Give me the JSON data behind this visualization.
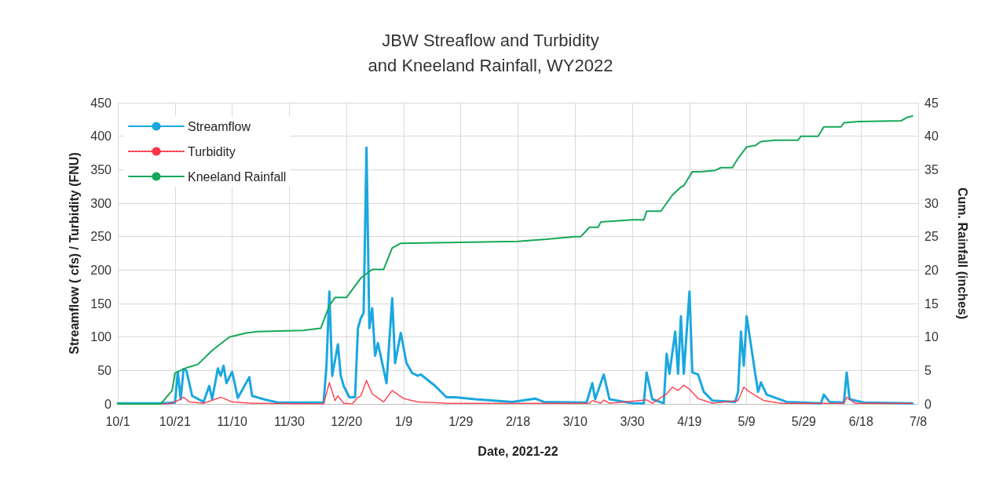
{
  "chart_data": {
    "type": "line",
    "title": "JBW Streaflow and Turbidity\nand Kneeland Rainfall, WY2022",
    "xlabel": "Date, 2021-22",
    "ylabel": "Streamflow ( cfs) / Turbidity (FNU)",
    "y2label": "Cum. Rainfall (inches)",
    "xlim": [
      "2021-10-01",
      "2022-07-08"
    ],
    "xticks": [
      {
        "value": "2021-10-01",
        "label": "10/1"
      },
      {
        "value": "2021-10-21",
        "label": "10/21"
      },
      {
        "value": "2021-11-10",
        "label": "11/10"
      },
      {
        "value": "2021-11-30",
        "label": "11/30"
      },
      {
        "value": "2021-12-20",
        "label": "12/20"
      },
      {
        "value": "2022-01-09",
        "label": "1/9"
      },
      {
        "value": "2022-01-29",
        "label": "1/29"
      },
      {
        "value": "2022-02-18",
        "label": "2/18"
      },
      {
        "value": "2022-03-10",
        "label": "3/10"
      },
      {
        "value": "2022-03-30",
        "label": "3/30"
      },
      {
        "value": "2022-04-19",
        "label": "4/19"
      },
      {
        "value": "2022-05-09",
        "label": "5/9"
      },
      {
        "value": "2022-05-29",
        "label": "5/29"
      },
      {
        "value": "2022-06-18",
        "label": "6/18"
      },
      {
        "value": "2022-07-08",
        "label": "7/8"
      }
    ],
    "ylim": [
      0,
      450
    ],
    "yticks": [
      0,
      50,
      100,
      150,
      200,
      250,
      300,
      350,
      400,
      450
    ],
    "y2lim": [
      0,
      45
    ],
    "y2ticks": [
      0,
      5,
      10,
      15,
      20,
      25,
      30,
      35,
      40,
      45
    ],
    "grid": true,
    "legend": "top left",
    "marker": "none",
    "series": [
      {
        "name": "Streamflow",
        "color": "#1aa7e0",
        "line_style": "solid",
        "x": [
          "2021-10-01",
          "2021-10-16",
          "2021-10-21",
          "2021-10-22",
          "2021-10-23",
          "2021-10-24",
          "2021-10-25",
          "2021-10-27",
          "2021-10-31",
          "2021-11-02",
          "2021-11-03",
          "2021-11-05",
          "2021-11-06",
          "2021-11-07",
          "2021-11-08",
          "2021-11-10",
          "2021-11-12",
          "2021-11-16",
          "2021-11-17",
          "2021-11-21",
          "2021-11-26",
          "2021-12-12",
          "2021-12-13",
          "2021-12-14",
          "2021-12-15",
          "2021-12-17",
          "2021-12-18",
          "2021-12-19",
          "2021-12-21",
          "2021-12-23",
          "2021-12-24",
          "2021-12-25",
          "2021-12-26",
          "2021-12-27",
          "2021-12-28",
          "2021-12-29",
          "2021-12-30",
          "2021-12-31",
          "2022-01-03",
          "2022-01-05",
          "2022-01-06",
          "2022-01-08",
          "2022-01-10",
          "2022-01-12",
          "2022-01-14",
          "2022-01-15",
          "2022-01-20",
          "2022-01-24",
          "2022-01-27",
          "2022-02-03",
          "2022-02-16",
          "2022-02-24",
          "2022-02-27",
          "2022-03-14",
          "2022-03-16",
          "2022-03-17",
          "2022-03-20",
          "2022-03-22",
          "2022-03-30",
          "2022-04-03",
          "2022-04-04",
          "2022-04-06",
          "2022-04-10",
          "2022-04-11",
          "2022-04-12",
          "2022-04-14",
          "2022-04-15",
          "2022-04-16",
          "2022-04-17",
          "2022-04-19",
          "2022-04-20",
          "2022-04-22",
          "2022-04-24",
          "2022-04-27",
          "2022-05-05",
          "2022-05-06",
          "2022-05-07",
          "2022-05-08",
          "2022-05-09",
          "2022-05-12",
          "2022-05-13",
          "2022-05-14",
          "2022-05-16",
          "2022-05-23",
          "2022-06-04",
          "2022-06-05",
          "2022-06-07",
          "2022-06-12",
          "2022-06-13",
          "2022-06-14",
          "2022-06-19",
          "2022-07-06"
        ],
        "values": [
          1,
          1,
          2,
          48,
          7,
          52,
          50,
          12,
          3,
          27,
          7,
          53,
          42,
          57,
          31,
          48,
          9,
          40,
          12,
          7,
          2,
          2,
          57,
          168,
          42,
          89,
          42,
          27,
          10,
          10,
          113,
          128,
          136,
          383,
          113,
          143,
          72,
          91,
          31,
          158,
          61,
          106,
          61,
          46,
          42,
          44,
          27,
          10,
          10,
          7,
          3,
          8,
          3,
          2,
          31,
          7,
          44,
          7,
          1,
          1,
          47,
          7,
          1,
          75,
          45,
          108,
          45,
          131,
          45,
          168,
          47,
          44,
          18,
          5,
          3,
          18,
          108,
          57,
          131,
          45,
          18,
          32,
          14,
          3,
          1,
          14,
          3,
          2,
          47,
          7,
          2,
          1
        ]
      },
      {
        "name": "Turbidity",
        "color": "#ff3344",
        "line_style": "dotted",
        "x": [
          "2021-10-01",
          "2021-10-19",
          "2021-10-22",
          "2021-10-24",
          "2021-10-26",
          "2021-10-31",
          "2021-11-06",
          "2021-11-10",
          "2021-11-17",
          "2021-12-12",
          "2021-12-14",
          "2021-12-16",
          "2021-12-17",
          "2021-12-19",
          "2021-12-22",
          "2021-12-24",
          "2021-12-25",
          "2021-12-27",
          "2021-12-29",
          "2022-01-02",
          "2022-01-05",
          "2022-01-09",
          "2022-01-14",
          "2022-01-24",
          "2022-03-15",
          "2022-03-16",
          "2022-03-19",
          "2022-03-20",
          "2022-03-22",
          "2022-04-04",
          "2022-04-06",
          "2022-04-11",
          "2022-04-13",
          "2022-04-15",
          "2022-04-17",
          "2022-04-19",
          "2022-04-22",
          "2022-04-27",
          "2022-05-06",
          "2022-05-08",
          "2022-05-10",
          "2022-05-15",
          "2022-05-21",
          "2022-06-12",
          "2022-06-13",
          "2022-06-16",
          "2022-07-06"
        ],
        "values": [
          0,
          0,
          5,
          10,
          3,
          1,
          10,
          3,
          1,
          0,
          32,
          5,
          12,
          1,
          0,
          10,
          12,
          35,
          15,
          3,
          20,
          8,
          3,
          1,
          1,
          5,
          1,
          6,
          1,
          6,
          1,
          15,
          25,
          20,
          28,
          22,
          8,
          1,
          5,
          25,
          18,
          5,
          1,
          1,
          10,
          1,
          1
        ]
      },
      {
        "name": "Kneeland Rainfall",
        "color": "#15a85a",
        "line_style": "solid",
        "axis": "y2",
        "x": [
          "2021-10-01",
          "2021-10-16",
          "2021-10-20",
          "2021-10-21",
          "2021-10-25",
          "2021-10-29",
          "2021-11-03",
          "2021-11-09",
          "2021-11-15",
          "2021-11-19",
          "2021-12-05",
          "2021-12-11",
          "2021-12-14",
          "2021-12-16",
          "2021-12-20",
          "2021-12-25",
          "2021-12-29",
          "2022-01-02",
          "2022-01-05",
          "2022-01-08",
          "2022-02-18",
          "2022-02-28",
          "2022-03-10",
          "2022-03-12",
          "2022-03-15",
          "2022-03-18",
          "2022-03-19",
          "2022-03-30",
          "2022-04-03",
          "2022-04-04",
          "2022-04-09",
          "2022-04-11",
          "2022-04-13",
          "2022-04-16",
          "2022-04-17",
          "2022-04-20",
          "2022-04-23",
          "2022-04-28",
          "2022-04-30",
          "2022-05-04",
          "2022-05-06",
          "2022-05-09",
          "2022-05-12",
          "2022-05-14",
          "2022-05-19",
          "2022-05-27",
          "2022-05-28",
          "2022-06-03",
          "2022-06-05",
          "2022-06-11",
          "2022-06-12",
          "2022-06-17",
          "2022-07-02",
          "2022-07-04",
          "2022-07-06"
        ],
        "values": [
          0,
          0,
          2.0,
          4.6,
          5.4,
          5.9,
          8.0,
          10.0,
          10.6,
          10.8,
          11.0,
          11.3,
          14.7,
          15.9,
          15.9,
          18.8,
          20.1,
          20.1,
          23.3,
          24.0,
          24.3,
          24.6,
          25.0,
          25.0,
          26.4,
          26.4,
          27.2,
          27.5,
          27.5,
          28.8,
          28.8,
          30.0,
          31.2,
          32.4,
          32.6,
          34.7,
          34.7,
          34.9,
          35.3,
          35.3,
          36.7,
          38.4,
          38.6,
          39.2,
          39.4,
          39.4,
          40.0,
          40.0,
          41.4,
          41.4,
          42.0,
          42.2,
          42.3,
          42.8,
          43.0
        ]
      }
    ]
  }
}
